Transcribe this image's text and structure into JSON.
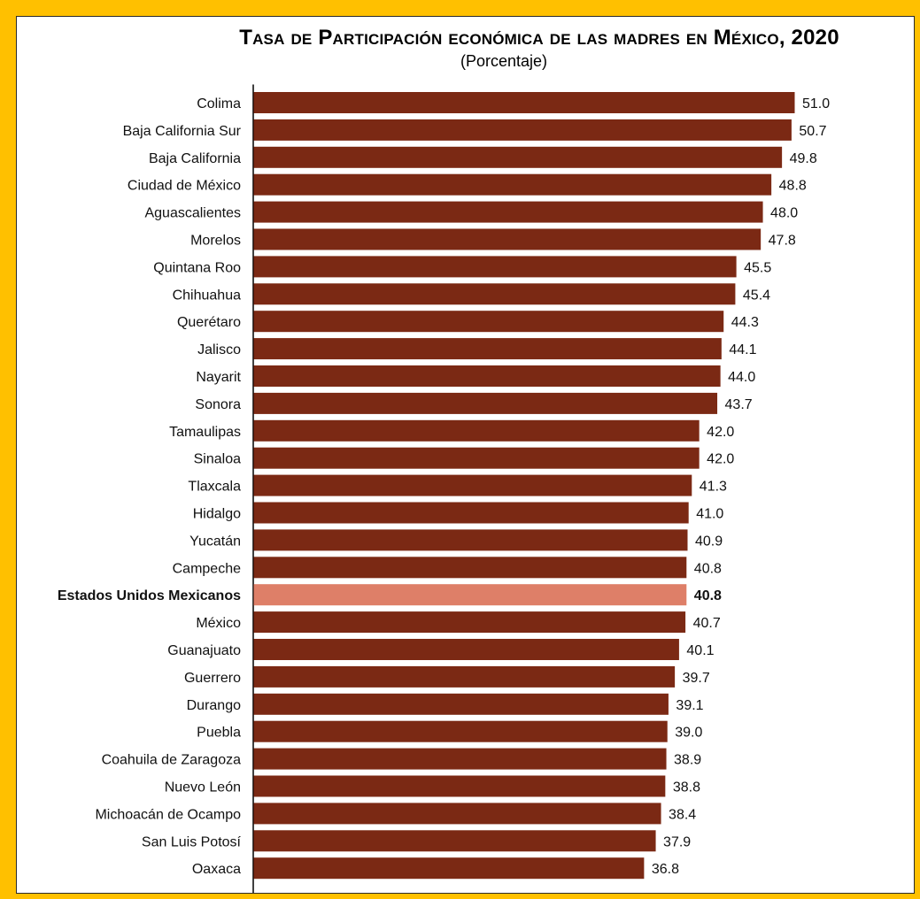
{
  "chart_data": {
    "type": "bar",
    "orientation": "horizontal",
    "title": "Tasa de Participación económica de las madres en México, 2020",
    "subtitle": "(Porcentaje)",
    "categories": [
      "Colima",
      "Baja California Sur",
      "Baja California",
      "Ciudad de México",
      "Aguascalientes",
      "Morelos",
      "Quintana Roo",
      "Chihuahua",
      "Querétaro",
      "Jalisco",
      "Nayarit",
      "Sonora",
      "Tamaulipas",
      "Sinaloa",
      "Tlaxcala",
      "Hidalgo",
      "Yucatán",
      "Campeche",
      "Estados Unidos Mexicanos",
      "México",
      "Guanajuato",
      "Guerrero",
      "Durango",
      "Puebla",
      "Coahuila de Zaragoza",
      "Nuevo León",
      "Michoacán de Ocampo",
      "San Luis Potosí",
      "Oaxaca"
    ],
    "values": [
      51.0,
      50.7,
      49.8,
      48.8,
      48.0,
      47.8,
      45.5,
      45.4,
      44.3,
      44.1,
      44.0,
      43.7,
      42.0,
      42.0,
      41.3,
      41.0,
      40.9,
      40.8,
      40.8,
      40.7,
      40.1,
      39.7,
      39.1,
      39.0,
      38.9,
      38.8,
      38.4,
      37.9,
      36.8
    ],
    "value_labels": [
      "51.0",
      "50.7",
      "49.8",
      "48.8",
      "48.0",
      "47.8",
      "45.5",
      "45.4",
      "44.3",
      "44.1",
      "44.0",
      "43.7",
      "42.0",
      "42.0",
      "41.3",
      "41.0",
      "40.9",
      "40.8",
      "40.8",
      "40.7",
      "40.1",
      "39.7",
      "39.1",
      "39.0",
      "38.9",
      "38.8",
      "38.4",
      "37.9",
      "36.8"
    ],
    "highlight_category": "Estados Unidos Mexicanos",
    "xlim": [
      0,
      51.0
    ],
    "grid": false,
    "colors": {
      "bar": "#7B2914",
      "highlight": "#DE7F68",
      "frame": "#FFC000"
    }
  }
}
